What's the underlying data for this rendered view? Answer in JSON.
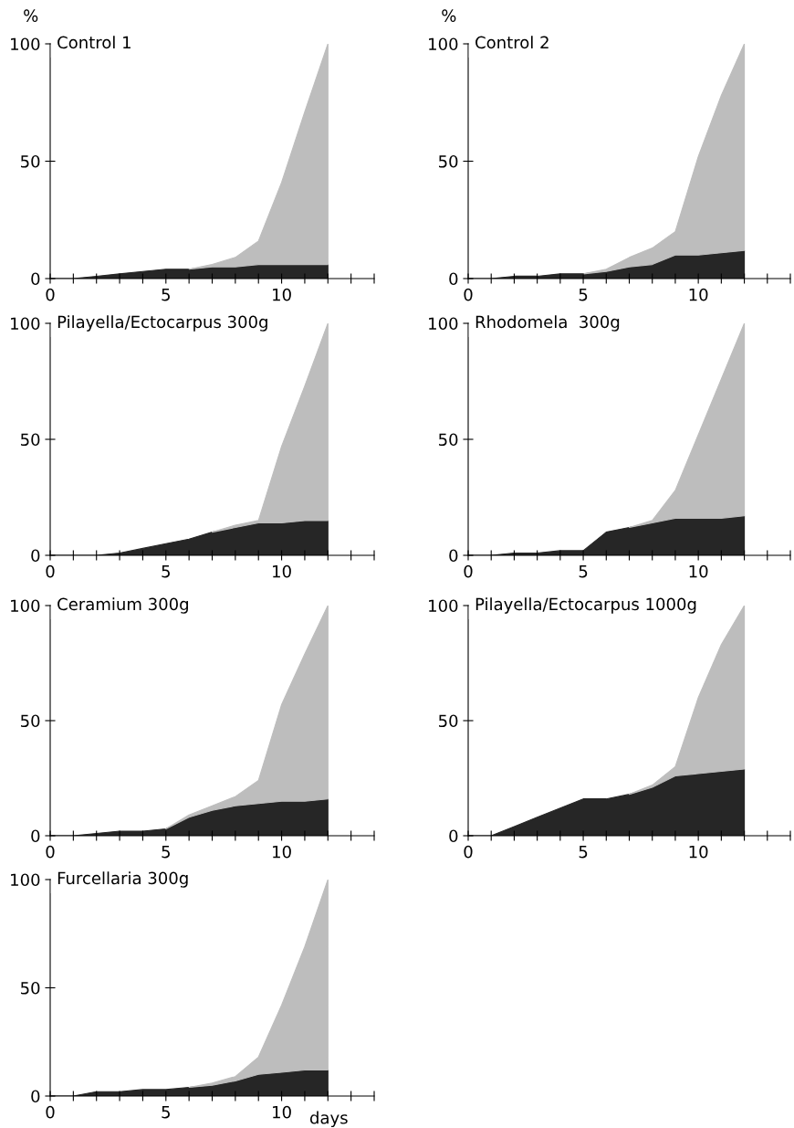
{
  "chart_data": [
    {
      "type": "area",
      "stacked": true,
      "title": "Control 1",
      "ylabel": "%",
      "x": [
        0,
        1,
        2,
        3,
        4,
        5,
        6,
        7,
        8,
        9,
        10,
        11,
        12
      ],
      "series": [
        {
          "color": "#262626",
          "values": [
            0,
            0,
            1,
            2,
            3,
            4,
            4,
            5,
            5,
            6,
            6,
            6,
            6
          ]
        },
        {
          "color": "#bdbdbd",
          "values": [
            null,
            null,
            null,
            null,
            null,
            null,
            0,
            1,
            4,
            10,
            35,
            65,
            94
          ]
        }
      ],
      "xlim": [
        0,
        14
      ],
      "ylim": [
        0,
        100
      ],
      "yticks": [
        0,
        50,
        100
      ],
      "xticks": [
        0,
        {
          "value": 1,
          "label": null
        },
        {
          "value": 2,
          "label": null
        },
        {
          "value": 3,
          "label": null
        },
        {
          "value": 4,
          "label": null
        },
        5,
        {
          "value": 6,
          "label": null
        },
        {
          "value": 7,
          "label": null
        },
        {
          "value": 8,
          "label": null
        },
        {
          "value": 9,
          "label": null
        },
        10,
        {
          "value": 11,
          "label": null
        },
        {
          "value": 12,
          "label": null
        },
        {
          "value": 13,
          "label": null
        },
        {
          "value": 14,
          "label": null
        }
      ]
    },
    {
      "type": "area",
      "stacked": true,
      "title": "Control 2",
      "ylabel": "%",
      "x": [
        0,
        1,
        2,
        3,
        4,
        5,
        6,
        7,
        8,
        9,
        10,
        11,
        12
      ],
      "series": [
        {
          "color": "#262626",
          "values": [
            0,
            0,
            1,
            1,
            2,
            2,
            3,
            5,
            6,
            10,
            10,
            11,
            12
          ]
        },
        {
          "color": "#bdbdbd",
          "values": [
            null,
            null,
            null,
            null,
            null,
            0,
            1,
            4,
            7,
            10,
            42,
            67,
            88
          ]
        }
      ],
      "xlim": [
        0,
        14
      ],
      "ylim": [
        0,
        100
      ],
      "yticks": [
        0,
        50,
        100
      ],
      "xticks": [
        0,
        {
          "value": 1,
          "label": null
        },
        {
          "value": 2,
          "label": null
        },
        {
          "value": 3,
          "label": null
        },
        {
          "value": 4,
          "label": null
        },
        5,
        {
          "value": 6,
          "label": null
        },
        {
          "value": 7,
          "label": null
        },
        {
          "value": 8,
          "label": null
        },
        {
          "value": 9,
          "label": null
        },
        10,
        {
          "value": 11,
          "label": null
        },
        {
          "value": 12,
          "label": null
        },
        {
          "value": 13,
          "label": null
        },
        {
          "value": 14,
          "label": null
        }
      ]
    },
    {
      "type": "area",
      "stacked": true,
      "title": "Pilayella/Ectocarpus 300g",
      "x": [
        0,
        1,
        2,
        3,
        4,
        5,
        6,
        7,
        8,
        9,
        10,
        11,
        12
      ],
      "series": [
        {
          "color": "#262626",
          "values": [
            0,
            0,
            0,
            1,
            3,
            5,
            7,
            10,
            12,
            14,
            14,
            15,
            15
          ]
        },
        {
          "color": "#bdbdbd",
          "values": [
            null,
            null,
            null,
            null,
            null,
            null,
            null,
            0,
            1,
            1,
            33,
            58,
            85
          ]
        }
      ],
      "xlim": [
        0,
        14
      ],
      "ylim": [
        0,
        100
      ],
      "yticks": [
        0,
        50,
        100
      ],
      "xticks": [
        0,
        {
          "value": 1,
          "label": null
        },
        {
          "value": 2,
          "label": null
        },
        {
          "value": 3,
          "label": null
        },
        {
          "value": 4,
          "label": null
        },
        5,
        {
          "value": 6,
          "label": null
        },
        {
          "value": 7,
          "label": null
        },
        {
          "value": 8,
          "label": null
        },
        {
          "value": 9,
          "label": null
        },
        10,
        {
          "value": 11,
          "label": null
        },
        {
          "value": 12,
          "label": null
        },
        {
          "value": 13,
          "label": null
        },
        {
          "value": 14,
          "label": null
        }
      ]
    },
    {
      "type": "area",
      "stacked": true,
      "title": "Rhodomela  300g",
      "x": [
        0,
        1,
        2,
        3,
        4,
        5,
        6,
        7,
        8,
        9,
        10,
        11,
        12
      ],
      "series": [
        {
          "color": "#262626",
          "values": [
            0,
            0,
            1,
            1,
            2,
            2,
            10,
            12,
            14,
            16,
            16,
            16,
            17
          ]
        },
        {
          "color": "#bdbdbd",
          "values": [
            null,
            null,
            null,
            null,
            null,
            null,
            null,
            0,
            1,
            12,
            36,
            60,
            83
          ]
        }
      ],
      "xlim": [
        0,
        14
      ],
      "ylim": [
        0,
        100
      ],
      "yticks": [
        0,
        50,
        100
      ],
      "xticks": [
        0,
        {
          "value": 1,
          "label": null
        },
        {
          "value": 2,
          "label": null
        },
        {
          "value": 3,
          "label": null
        },
        {
          "value": 4,
          "label": null
        },
        5,
        {
          "value": 6,
          "label": null
        },
        {
          "value": 7,
          "label": null
        },
        {
          "value": 8,
          "label": null
        },
        {
          "value": 9,
          "label": null
        },
        10,
        {
          "value": 11,
          "label": null
        },
        {
          "value": 12,
          "label": null
        },
        {
          "value": 13,
          "label": null
        },
        {
          "value": 14,
          "label": null
        }
      ]
    },
    {
      "type": "area",
      "stacked": true,
      "title": "Ceramium 300g",
      "x": [
        0,
        1,
        2,
        3,
        4,
        5,
        6,
        7,
        8,
        9,
        10,
        11,
        12
      ],
      "series": [
        {
          "color": "#262626",
          "values": [
            0,
            0,
            1,
            2,
            2,
            3,
            8,
            11,
            13,
            14,
            15,
            15,
            16
          ]
        },
        {
          "color": "#bdbdbd",
          "values": [
            null,
            null,
            null,
            null,
            null,
            0,
            1,
            2,
            4,
            10,
            42,
            64,
            84
          ]
        }
      ],
      "xlim": [
        0,
        14
      ],
      "ylim": [
        0,
        100
      ],
      "yticks": [
        0,
        50,
        100
      ],
      "xticks": [
        0,
        {
          "value": 1,
          "label": null
        },
        {
          "value": 2,
          "label": null
        },
        {
          "value": 3,
          "label": null
        },
        {
          "value": 4,
          "label": null
        },
        5,
        {
          "value": 6,
          "label": null
        },
        {
          "value": 7,
          "label": null
        },
        {
          "value": 8,
          "label": null
        },
        {
          "value": 9,
          "label": null
        },
        10,
        {
          "value": 11,
          "label": null
        },
        {
          "value": 12,
          "label": null
        },
        {
          "value": 13,
          "label": null
        },
        {
          "value": 14,
          "label": null
        }
      ]
    },
    {
      "type": "area",
      "stacked": true,
      "title": "Pilayella/Ectocarpus 1000g",
      "x": [
        0,
        1,
        2,
        3,
        4,
        5,
        6,
        7,
        8,
        9,
        10,
        11,
        12
      ],
      "series": [
        {
          "color": "#262626",
          "values": [
            0,
            0,
            4,
            8,
            12,
            16,
            16,
            18,
            21,
            26,
            27,
            28,
            29
          ]
        },
        {
          "color": "#bdbdbd",
          "values": [
            null,
            null,
            null,
            null,
            null,
            null,
            null,
            0,
            1,
            4,
            33,
            55,
            71
          ]
        }
      ],
      "xlim": [
        0,
        14
      ],
      "ylim": [
        0,
        100
      ],
      "yticks": [
        0,
        50,
        100
      ],
      "xticks": [
        0,
        {
          "value": 1,
          "label": null
        },
        {
          "value": 2,
          "label": null
        },
        {
          "value": 3,
          "label": null
        },
        {
          "value": 4,
          "label": null
        },
        5,
        {
          "value": 6,
          "label": null
        },
        {
          "value": 7,
          "label": null
        },
        {
          "value": 8,
          "label": null
        },
        {
          "value": 9,
          "label": null
        },
        10,
        {
          "value": 11,
          "label": null
        },
        {
          "value": 12,
          "label": null
        },
        {
          "value": 13,
          "label": null
        },
        {
          "value": 14,
          "label": null
        }
      ]
    },
    {
      "type": "area",
      "stacked": true,
      "title": "Furcellaria 300g",
      "xlabel": "days",
      "x": [
        0,
        1,
        2,
        3,
        4,
        5,
        6,
        7,
        8,
        9,
        10,
        11,
        12
      ],
      "series": [
        {
          "color": "#262626",
          "values": [
            0,
            0,
            2,
            2,
            3,
            3,
            4,
            5,
            7,
            10,
            11,
            12,
            12
          ]
        },
        {
          "color": "#bdbdbd",
          "values": [
            null,
            null,
            null,
            null,
            null,
            null,
            0,
            1,
            2,
            8,
            31,
            57,
            88
          ]
        }
      ],
      "xlim": [
        0,
        14
      ],
      "ylim": [
        0,
        100
      ],
      "yticks": [
        0,
        50,
        100
      ],
      "xticks": [
        0,
        {
          "value": 1,
          "label": null
        },
        {
          "value": 2,
          "label": null
        },
        {
          "value": 3,
          "label": null
        },
        {
          "value": 4,
          "label": null
        },
        5,
        {
          "value": 6,
          "label": null
        },
        {
          "value": 7,
          "label": null
        },
        {
          "value": 8,
          "label": null
        },
        {
          "value": 9,
          "label": null
        },
        10,
        {
          "value": 11,
          "label": null
        },
        {
          "value": 12,
          "label": null
        },
        {
          "value": 13,
          "label": null
        },
        {
          "value": 14,
          "label": null
        }
      ]
    }
  ]
}
